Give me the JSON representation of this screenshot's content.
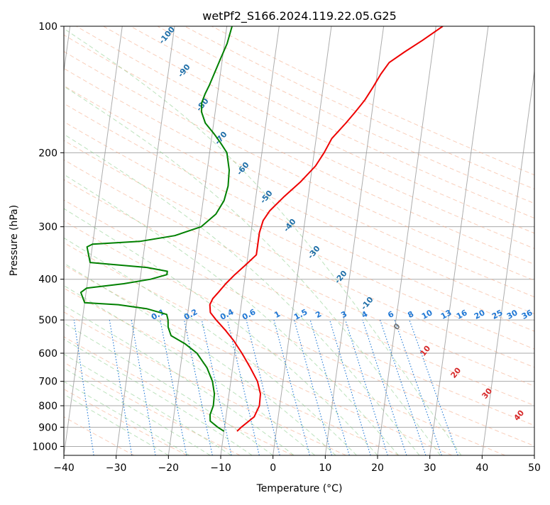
{
  "chart_data": {
    "type": "line",
    "chart_kind": "skew-T log-P diagram",
    "title": "wetPf2_S166.2024.119.22.05.G25",
    "xlabel": "Temperature (°C)",
    "ylabel": "Pressure (hPa)",
    "xlim": [
      -40,
      50
    ],
    "ylim": [
      1050,
      100
    ],
    "y_scale": "log",
    "x_ticks": [
      "−40",
      "−30",
      "−20",
      "−10",
      "0",
      "10",
      "20",
      "30",
      "40",
      "50"
    ],
    "y_ticks": [
      "100",
      "200",
      "300",
      "400",
      "500",
      "600",
      "700",
      "800",
      "900",
      "1000"
    ],
    "grid": true,
    "colors": {
      "temperature": "#ee0000",
      "dewpoint": "#008000",
      "isotherm": "#999999",
      "dry_adiabat": "#f4a582",
      "moist_adiabat": "#8fcf8f",
      "mixing_ratio": "#1f77d4",
      "height_label": "#1f6fa8",
      "other_label": "#d62728"
    },
    "series": [
      {
        "name": "temperature",
        "points": [
          [
            920,
            -7.5
          ],
          [
            900,
            -6.8
          ],
          [
            850,
            -4.6
          ],
          [
            800,
            -3.9
          ],
          [
            750,
            -4.0
          ],
          [
            700,
            -4.9
          ],
          [
            650,
            -6.6
          ],
          [
            600,
            -8.6
          ],
          [
            560,
            -10.5
          ],
          [
            530,
            -12.3
          ],
          [
            500,
            -14.4
          ],
          [
            480,
            -15.7
          ],
          [
            460,
            -16.0
          ],
          [
            445,
            -15.6
          ],
          [
            430,
            -14.7
          ],
          [
            410,
            -13.5
          ],
          [
            390,
            -12.0
          ],
          [
            370,
            -10.2
          ],
          [
            350,
            -8.4
          ],
          [
            330,
            -8.4
          ],
          [
            310,
            -8.4
          ],
          [
            290,
            -8.0
          ],
          [
            275,
            -7.0
          ],
          [
            255,
            -4.7
          ],
          [
            235,
            -1.9
          ],
          [
            215,
            0.6
          ],
          [
            200,
            1.9
          ],
          [
            185,
            3.0
          ],
          [
            170,
            5.3
          ],
          [
            160,
            6.8
          ],
          [
            150,
            8.3
          ],
          [
            140,
            9.5
          ],
          [
            130,
            10.7
          ],
          [
            122,
            12.0
          ],
          [
            115,
            14.7
          ],
          [
            108,
            17.8
          ],
          [
            100,
            21.3
          ]
        ]
      },
      {
        "name": "dewpoint",
        "points": [
          [
            920,
            -10.0
          ],
          [
            900,
            -11.3
          ],
          [
            870,
            -12.9
          ],
          [
            840,
            -13.1
          ],
          [
            800,
            -12.7
          ],
          [
            750,
            -12.8
          ],
          [
            700,
            -13.5
          ],
          [
            650,
            -14.9
          ],
          [
            600,
            -17.2
          ],
          [
            570,
            -19.7
          ],
          [
            545,
            -22.6
          ],
          [
            520,
            -23.4
          ],
          [
            500,
            -23.6
          ],
          [
            485,
            -24.0
          ],
          [
            470,
            -28.0
          ],
          [
            460,
            -33.5
          ],
          [
            455,
            -40.0
          ],
          [
            430,
            -41.0
          ],
          [
            420,
            -40.0
          ],
          [
            410,
            -33.0
          ],
          [
            400,
            -28.0
          ],
          [
            390,
            -25.0
          ],
          [
            383,
            -25.0
          ],
          [
            375,
            -29.0
          ],
          [
            365,
            -40.0
          ],
          [
            335,
            -41.0
          ],
          [
            330,
            -40.0
          ],
          [
            325,
            -31.0
          ],
          [
            315,
            -24.5
          ],
          [
            300,
            -19.7
          ],
          [
            280,
            -17.2
          ],
          [
            260,
            -16.0
          ],
          [
            240,
            -15.6
          ],
          [
            220,
            -15.8
          ],
          [
            200,
            -16.7
          ],
          [
            190,
            -18.1
          ],
          [
            180,
            -19.7
          ],
          [
            170,
            -21.6
          ],
          [
            160,
            -22.6
          ],
          [
            152,
            -22.8
          ],
          [
            145,
            -22.4
          ],
          [
            138,
            -21.8
          ],
          [
            130,
            -21.2
          ],
          [
            120,
            -20.4
          ],
          [
            110,
            -19.5
          ],
          [
            100,
            -19.0
          ]
        ]
      }
    ],
    "isotherm_labels": [
      "-100",
      "-90",
      "-80",
      "-70",
      "-60",
      "-50",
      "-40",
      "-30",
      "-20",
      "-10",
      "0",
      "10",
      "20",
      "30",
      "40"
    ],
    "mixing_ratio_labels": [
      "0.1",
      "0.2",
      "0.4",
      "0.6",
      "1",
      "1.5",
      "2",
      "3",
      "4",
      "6",
      "8",
      "10",
      "13",
      "16",
      "20",
      "25",
      "30",
      "36"
    ]
  }
}
